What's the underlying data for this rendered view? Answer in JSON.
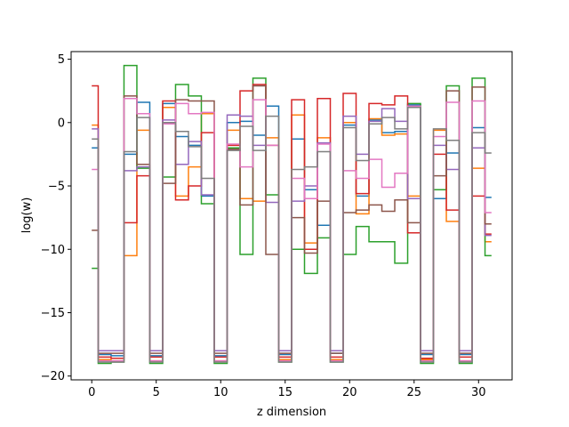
{
  "chart_data": {
    "type": "line",
    "drawstyle": "steps-mid",
    "title": "",
    "xlabel": "z dimension",
    "ylabel": "log(w)",
    "xlim": [
      -1.6,
      32.6
    ],
    "ylim": [
      -20.3,
      5.6
    ],
    "xticks": [
      0,
      5,
      10,
      15,
      20,
      25,
      30
    ],
    "yticks": [
      5,
      0,
      -5,
      -10,
      -15,
      -20
    ],
    "x": [
      0,
      1,
      2,
      3,
      4,
      5,
      6,
      7,
      8,
      9,
      10,
      11,
      12,
      13,
      14,
      15,
      16,
      17,
      18,
      19,
      20,
      21,
      22,
      23,
      24,
      25,
      26,
      27,
      28,
      29,
      30,
      31
    ],
    "grid": false,
    "legend": "none",
    "series": [
      {
        "color": "#1f77b4",
        "values": [
          -2.0,
          -18.3,
          -18.4,
          -2.5,
          1.6,
          -18.4,
          1.5,
          -1.1,
          -1.8,
          -5.8,
          -18.4,
          0.0,
          0.1,
          -1.0,
          1.3,
          -18.3,
          -1.3,
          -5.3,
          -8.1,
          -18.2,
          -0.2,
          -5.8,
          0.2,
          -0.8,
          -0.7,
          1.4,
          -18.3,
          -6.0,
          -2.4,
          -18.3,
          -0.4,
          -5.9
        ]
      },
      {
        "color": "#ff7f0e",
        "values": [
          -0.2,
          -18.7,
          -18.8,
          -10.5,
          -0.6,
          -18.8,
          1.2,
          -5.8,
          -3.5,
          0.7,
          -18.8,
          -0.6,
          -6.0,
          -6.2,
          -1.2,
          -18.7,
          0.6,
          -9.5,
          -1.2,
          -18.7,
          0.0,
          -7.2,
          0.3,
          -1.0,
          -0.9,
          -5.8,
          -18.7,
          -0.6,
          -7.8,
          -18.8,
          -3.6,
          -9.4
        ]
      },
      {
        "color": "#2ca02c",
        "values": [
          -11.5,
          -19.0,
          -18.9,
          4.5,
          -3.6,
          -19.0,
          -4.3,
          3.0,
          2.1,
          -6.4,
          -19.0,
          -2.0,
          -10.4,
          3.5,
          -5.7,
          -18.9,
          -10.0,
          -11.9,
          -9.1,
          -18.9,
          -10.4,
          -8.2,
          -9.4,
          -9.4,
          -11.1,
          1.5,
          -19.0,
          -5.3,
          2.9,
          -19.0,
          3.5,
          -10.5
        ]
      },
      {
        "color": "#d62728",
        "values": [
          2.9,
          -18.5,
          -18.6,
          -7.9,
          -4.2,
          -18.5,
          1.7,
          -6.1,
          -5.0,
          -0.8,
          -18.5,
          -1.8,
          2.5,
          3.0,
          -1.8,
          -18.5,
          1.8,
          -10.0,
          1.9,
          -18.5,
          2.3,
          -5.6,
          1.5,
          1.4,
          2.1,
          -8.7,
          -18.6,
          -2.5,
          -6.9,
          -18.5,
          -5.8,
          -8.8
        ]
      },
      {
        "color": "#9467bd",
        "values": [
          -0.5,
          -18.0,
          -18.0,
          -3.8,
          -3.5,
          -18.0,
          0.2,
          -3.3,
          -1.5,
          -5.7,
          -18.0,
          0.6,
          0.5,
          -1.8,
          -6.3,
          -18.0,
          -6.2,
          -5.0,
          -1.6,
          -18.0,
          0.5,
          -2.5,
          0.1,
          1.1,
          0.1,
          -6.0,
          -18.0,
          -1.8,
          -3.7,
          -18.0,
          -2.0,
          -8.9
        ]
      },
      {
        "color": "#8c564b",
        "values": [
          -8.5,
          -18.2,
          -18.2,
          2.1,
          -3.3,
          -18.2,
          -4.8,
          1.8,
          1.7,
          1.7,
          -18.2,
          -2.1,
          -6.5,
          2.9,
          -10.4,
          -18.2,
          -7.5,
          -10.3,
          -6.2,
          -18.2,
          -7.1,
          -6.9,
          -6.5,
          -7.0,
          -6.1,
          -7.9,
          -18.2,
          -4.2,
          2.5,
          -18.2,
          2.8,
          -8.0
        ]
      },
      {
        "color": "#e377c2",
        "values": [
          -3.7,
          -18.8,
          -18.8,
          1.9,
          0.7,
          -18.8,
          -0.1,
          1.5,
          0.7,
          0.8,
          -18.8,
          -1.7,
          -3.5,
          1.8,
          -1.8,
          -18.8,
          -4.4,
          -6.0,
          -1.7,
          -18.8,
          -3.8,
          -4.4,
          -2.9,
          -5.1,
          -4.0,
          1.3,
          -18.8,
          -1.1,
          1.6,
          -18.8,
          1.7,
          -7.1
        ]
      },
      {
        "color": "#7f7f7f",
        "values": [
          -1.3,
          -18.9,
          -18.9,
          -2.3,
          0.4,
          -18.9,
          0.0,
          -0.7,
          -1.9,
          -4.4,
          -18.9,
          -2.2,
          -0.3,
          -2.2,
          0.5,
          -18.9,
          -3.7,
          -3.5,
          -2.3,
          -18.9,
          -0.4,
          -3.0,
          -0.1,
          0.4,
          -0.5,
          1.2,
          -18.9,
          -0.5,
          -1.4,
          -18.9,
          -0.8,
          -2.4
        ]
      }
    ]
  }
}
